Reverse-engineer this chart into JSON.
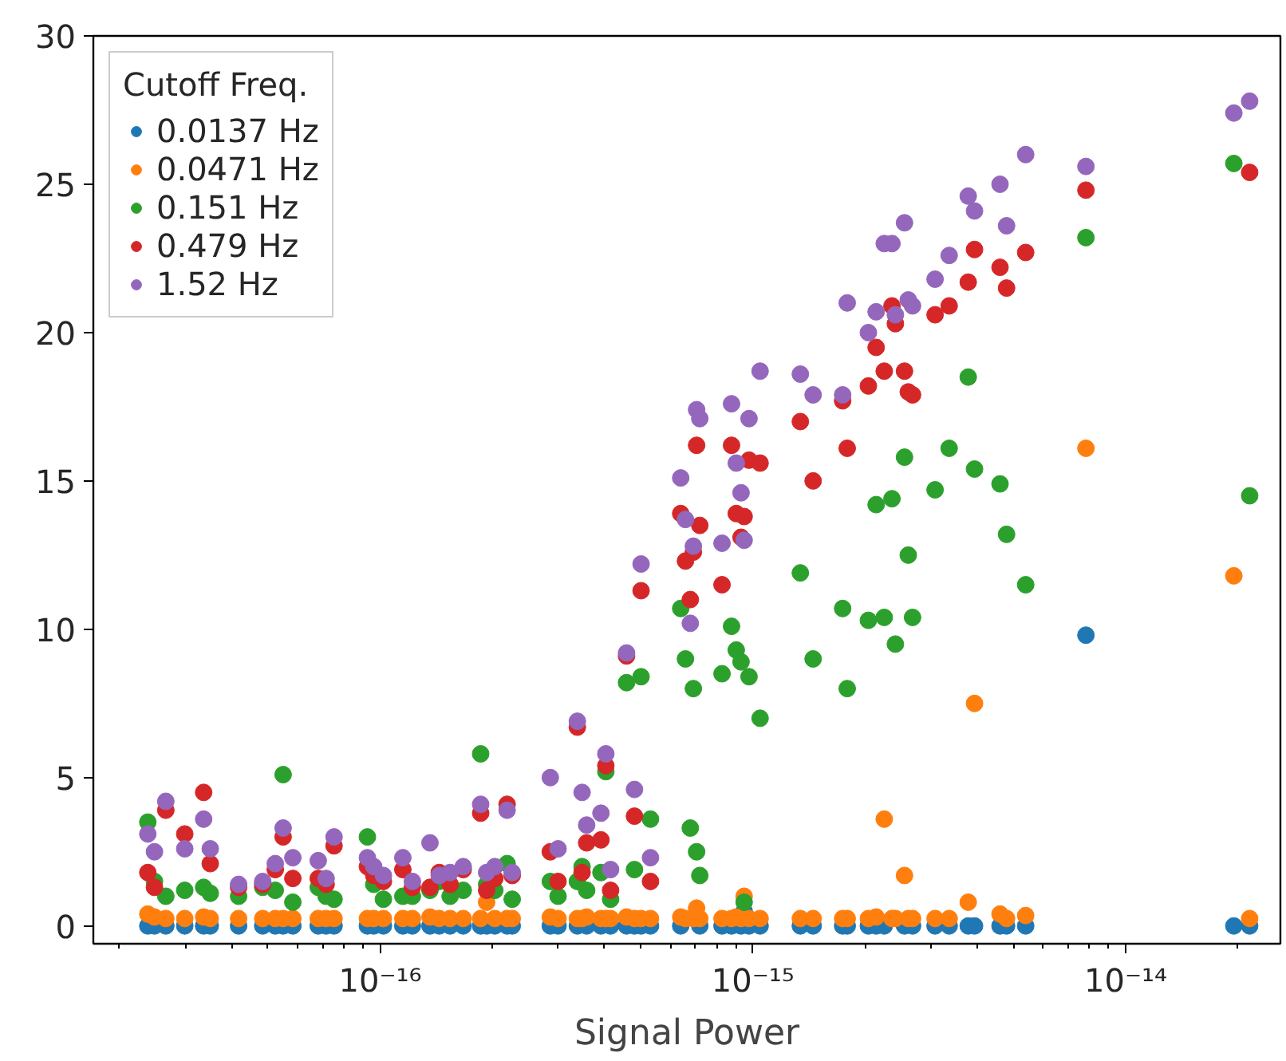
{
  "chart_data": {
    "type": "scatter",
    "xlabel": "Signal Power",
    "legend_title": "Cutoff Freq.",
    "legend": "top left",
    "marker": "circle",
    "grid": false,
    "log": "x",
    "xlim": [
      1.7e-17,
      2.6e-14
    ],
    "ylim": [
      -0.6,
      30
    ],
    "xticks": [
      {
        "value": 1e-16,
        "label": "10⁻¹⁶"
      },
      {
        "value": 1e-15,
        "label": "10⁻¹⁵"
      },
      {
        "value": 1e-14,
        "label": "10⁻¹⁴"
      }
    ],
    "yticks": [
      0,
      5,
      10,
      15,
      20,
      25,
      30
    ],
    "x": [
      2.38e-17,
      2.48e-17,
      2.66e-17,
      2.99e-17,
      3.36e-17,
      3.5e-17,
      4.17e-17,
      4.84e-17,
      5.23e-17,
      5.49e-17,
      5.83e-17,
      6.82e-17,
      7.16e-17,
      7.52e-17,
      9.24e-17,
      9.61e-17,
      1.02e-16,
      1.15e-16,
      1.22e-16,
      1.36e-16,
      1.44e-16,
      1.54e-16,
      1.67e-16,
      1.86e-16,
      1.93e-16,
      2.03e-16,
      2.19e-16,
      2.26e-16,
      2.86e-16,
      3e-16,
      3.38e-16,
      3.48e-16,
      3.58e-16,
      3.91e-16,
      4.03e-16,
      4.15e-16,
      4.58e-16,
      4.81e-16,
      5.01e-16,
      5.31e-16,
      6.4e-16,
      6.59e-16,
      6.79e-16,
      6.92e-16,
      7.06e-16,
      7.2e-16,
      8.26e-16,
      8.76e-16,
      9.02e-16,
      9.29e-16,
      9.47e-16,
      9.76e-16,
      1.045e-15,
      1.34e-15,
      1.45e-15,
      1.74e-15,
      1.79e-15,
      2.04e-15,
      2.14e-15,
      2.25e-15,
      2.36e-15,
      2.41e-15,
      2.55e-15,
      2.61e-15,
      2.68e-15,
      3.08e-15,
      3.36e-15,
      3.78e-15,
      3.93e-15,
      4.6e-15,
      4.79e-15,
      5.39e-15,
      7.82e-15,
      1.95e-14,
      2.15e-14
    ],
    "series": [
      {
        "name": "0.0137 Hz",
        "color": "#1f77b4",
        "values": [
          0.0,
          0.0,
          0.0,
          0.0,
          0.0,
          0.0,
          0.0,
          0.0,
          0.0,
          0.0,
          0.0,
          0.0,
          0.0,
          0.0,
          0.0,
          0.0,
          0.0,
          0.0,
          0.0,
          0.0,
          0.0,
          0.0,
          0.0,
          0.0,
          0.0,
          0.0,
          0.0,
          0.0,
          0.0,
          0.0,
          0.0,
          null,
          0.0,
          0.0,
          null,
          0.0,
          0.0,
          0.0,
          0.0,
          0.0,
          0.0,
          null,
          null,
          null,
          null,
          0.0,
          0.0,
          0.0,
          null,
          0.0,
          0.5,
          0.0,
          0.0,
          0.0,
          0.0,
          0.0,
          0.0,
          0.0,
          0.0,
          0.0,
          null,
          null,
          0.0,
          null,
          0.0,
          0.0,
          0.0,
          0.0,
          0.0,
          0.0,
          0.0,
          0.0,
          9.8,
          0.0,
          0.0
        ]
      },
      {
        "name": "0.0471 Hz",
        "color": "#ff7f0e",
        "values": [
          0.4,
          0.3,
          0.25,
          0.25,
          0.3,
          0.25,
          0.25,
          0.25,
          0.25,
          0.25,
          0.25,
          0.25,
          0.25,
          0.25,
          0.25,
          0.25,
          0.25,
          0.25,
          0.25,
          0.3,
          0.25,
          0.25,
          0.25,
          0.25,
          0.8,
          0.25,
          0.25,
          0.25,
          0.3,
          0.25,
          0.25,
          0.25,
          0.3,
          0.25,
          0.25,
          0.25,
          0.3,
          0.25,
          0.25,
          0.25,
          0.3,
          0.25,
          null,
          0.25,
          0.6,
          0.25,
          0.25,
          0.25,
          0.3,
          0.25,
          1.0,
          0.25,
          0.25,
          0.25,
          0.25,
          0.25,
          0.25,
          0.25,
          0.3,
          3.6,
          0.25,
          0.25,
          1.7,
          0.25,
          0.25,
          0.25,
          0.25,
          0.8,
          7.5,
          0.4,
          0.25,
          0.35,
          16.1,
          11.8,
          0.25
        ]
      },
      {
        "name": "0.151 Hz",
        "color": "#2ca02c",
        "values": [
          3.5,
          1.5,
          1.0,
          1.2,
          1.3,
          1.1,
          1.0,
          1.3,
          1.2,
          5.1,
          0.8,
          1.3,
          1.0,
          0.9,
          3.0,
          1.4,
          0.9,
          1.0,
          1.0,
          1.2,
          1.5,
          1.0,
          1.2,
          5.8,
          1.4,
          1.2,
          2.1,
          0.9,
          1.5,
          1.0,
          1.5,
          2.0,
          1.2,
          1.8,
          5.2,
          0.9,
          8.2,
          1.9,
          8.4,
          3.6,
          10.7,
          9.0,
          3.3,
          8.0,
          2.5,
          1.7,
          8.5,
          10.1,
          9.3,
          8.9,
          0.8,
          8.4,
          7.0,
          11.9,
          9.0,
          10.7,
          8.0,
          10.3,
          14.2,
          10.4,
          14.4,
          9.5,
          15.8,
          12.5,
          10.4,
          14.7,
          16.1,
          18.5,
          15.4,
          14.9,
          13.2,
          11.5,
          23.2,
          25.7,
          14.5
        ]
      },
      {
        "name": "0.479 Hz",
        "color": "#d62728",
        "values": [
          1.8,
          1.3,
          3.9,
          3.1,
          4.5,
          2.1,
          1.3,
          1.4,
          1.9,
          3.0,
          1.6,
          1.6,
          1.4,
          2.7,
          2.0,
          1.7,
          1.5,
          1.9,
          1.3,
          1.3,
          1.8,
          1.4,
          1.9,
          3.8,
          1.2,
          1.6,
          4.1,
          1.7,
          2.5,
          1.5,
          6.7,
          1.8,
          2.8,
          2.9,
          5.4,
          1.2,
          9.1,
          3.7,
          11.3,
          1.5,
          13.9,
          12.3,
          11.0,
          12.6,
          16.2,
          13.5,
          11.5,
          16.2,
          13.9,
          13.1,
          13.8,
          15.7,
          15.6,
          17.0,
          15.0,
          17.7,
          16.1,
          18.2,
          19.5,
          18.7,
          20.9,
          20.3,
          18.7,
          18.0,
          17.9,
          20.6,
          20.9,
          21.7,
          22.8,
          22.2,
          21.5,
          22.7,
          24.8,
          null,
          25.4
        ]
      },
      {
        "name": "1.52 Hz",
        "color": "#9467bd",
        "values": [
          3.1,
          2.5,
          4.2,
          2.6,
          3.6,
          2.6,
          1.4,
          1.5,
          2.1,
          3.3,
          2.3,
          2.2,
          1.6,
          3.0,
          2.3,
          2.0,
          1.7,
          2.3,
          1.5,
          2.8,
          1.7,
          1.8,
          2.0,
          4.1,
          1.8,
          2.0,
          3.9,
          1.8,
          5.0,
          2.6,
          6.9,
          4.5,
          3.4,
          3.8,
          5.8,
          1.9,
          9.2,
          4.6,
          12.2,
          2.3,
          15.1,
          13.7,
          10.2,
          12.8,
          17.4,
          17.1,
          12.9,
          17.6,
          15.6,
          14.6,
          13.0,
          17.1,
          18.7,
          18.6,
          17.9,
          17.9,
          21.0,
          20.0,
          20.7,
          23.0,
          23.0,
          20.6,
          23.7,
          21.1,
          20.9,
          21.8,
          22.6,
          24.6,
          24.1,
          25.0,
          23.6,
          26.0,
          25.6,
          27.4,
          27.8
        ]
      }
    ]
  }
}
